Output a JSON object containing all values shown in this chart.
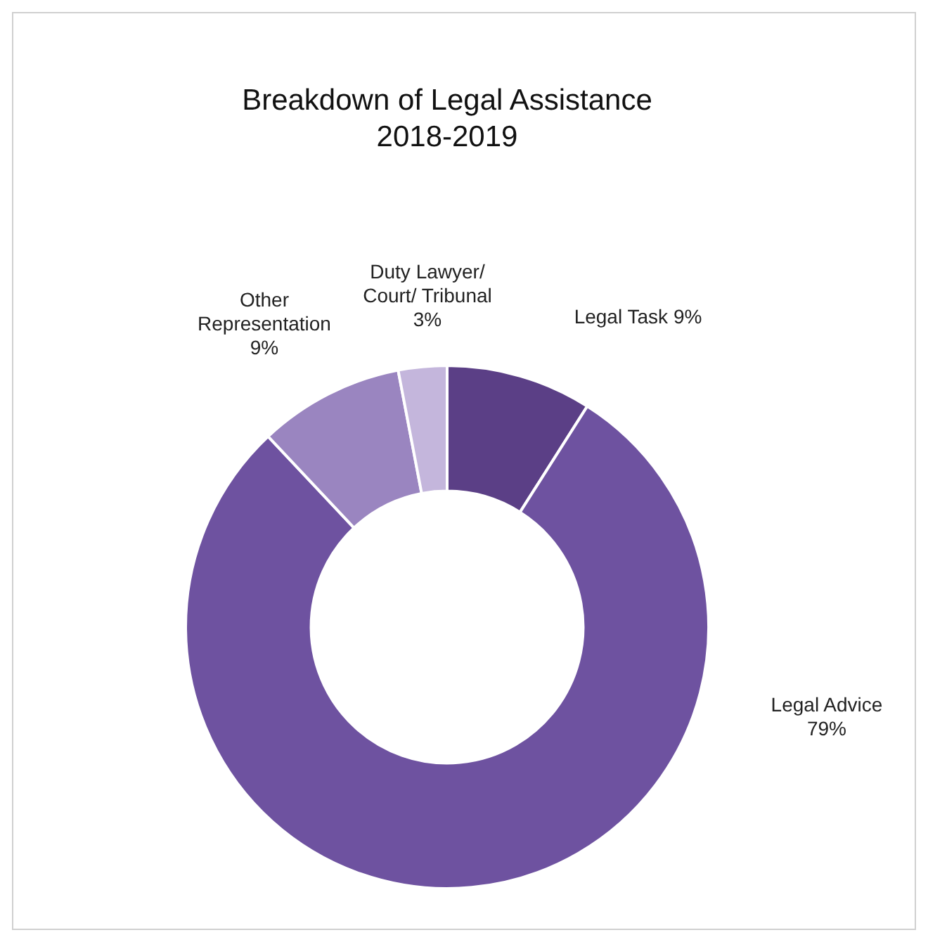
{
  "chart_data": {
    "type": "donut",
    "title": "Breakdown of Legal Assistance\n2018-2019",
    "categories": [
      "Legal Task",
      "Legal Advice",
      "Other\nRepresentation",
      "Duty Lawyer/\nCourt/ Tribunal"
    ],
    "values": [
      9,
      79,
      9,
      3
    ],
    "colors": [
      "#5b3f86",
      "#6e52a0",
      "#9a85c0",
      "#c4b6dc"
    ],
    "value_labels": [
      "9%",
      "79%",
      "9%",
      "3%"
    ]
  }
}
